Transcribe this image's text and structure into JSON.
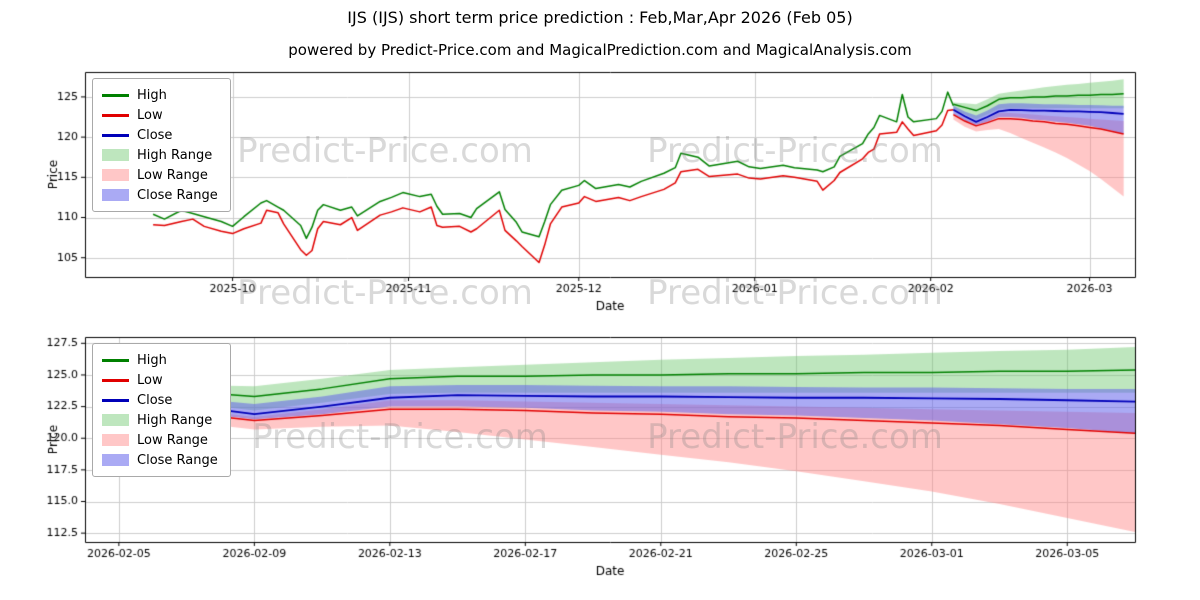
{
  "page": {
    "title": "IJS (IJS) short term price prediction : Feb,Mar,Apr 2026 (Feb 05)",
    "subtitle": "powered by Predict-Price.com and MagicalPrediction.com and MagicalAnalysis.com",
    "watermark": "Predict-Price.com"
  },
  "colors": {
    "high": "#008000",
    "low": "#e00000",
    "close": "#0000b8",
    "high_range_fill": "rgba(110,200,110,0.45)",
    "low_range_fill": "rgba(255,130,130,0.45)",
    "close_range_fill": "rgba(100,100,235,0.55)",
    "grid": "#cccccc",
    "frame": "#000000"
  },
  "legend": {
    "items": [
      {
        "label": "High",
        "kind": "line",
        "color_key": "high"
      },
      {
        "label": "Low",
        "kind": "line",
        "color_key": "low"
      },
      {
        "label": "Close",
        "kind": "line",
        "color_key": "close"
      },
      {
        "label": "High Range",
        "kind": "band",
        "color_key": "high_range_fill"
      },
      {
        "label": "Low Range",
        "kind": "band",
        "color_key": "low_range_fill"
      },
      {
        "label": "Close Range",
        "kind": "band",
        "color_key": "close_range_fill"
      }
    ]
  },
  "chart_data": [
    {
      "type": "line",
      "title": "IJS history and prediction overview",
      "xlabel": "Date",
      "ylabel": "Price",
      "xlim": [
        "2025-09-05",
        "2026-03-09"
      ],
      "ylim": [
        102.6,
        128.1
      ],
      "yticks": [
        {
          "v": 105,
          "label": "105"
        },
        {
          "v": 110,
          "label": "110"
        },
        {
          "v": 115,
          "label": "115"
        },
        {
          "v": 120,
          "label": "120"
        },
        {
          "v": 125,
          "label": "125"
        }
      ],
      "xticks": [
        {
          "date": "2025-10-01",
          "label": "2025-10"
        },
        {
          "date": "2025-11-01",
          "label": "2025-11"
        },
        {
          "date": "2025-12-01",
          "label": "2025-12"
        },
        {
          "date": "2026-01-01",
          "label": "2026-01"
        },
        {
          "date": "2026-02-01",
          "label": "2026-02"
        },
        {
          "date": "2026-03-01",
          "label": "2026-03"
        }
      ],
      "history": {
        "dates": [
          "2025-09-17",
          "2025-09-19",
          "2025-09-22",
          "2025-09-24",
          "2025-09-26",
          "2025-09-29",
          "2025-10-01",
          "2025-10-03",
          "2025-10-06",
          "2025-10-07",
          "2025-10-09",
          "2025-10-10",
          "2025-10-13",
          "2025-10-14",
          "2025-10-15",
          "2025-10-16",
          "2025-10-17",
          "2025-10-20",
          "2025-10-22",
          "2025-10-23",
          "2025-10-27",
          "2025-10-29",
          "2025-10-31",
          "2025-11-03",
          "2025-11-05",
          "2025-11-06",
          "2025-11-07",
          "2025-11-10",
          "2025-11-12",
          "2025-11-13",
          "2025-11-17",
          "2025-11-18",
          "2025-11-20",
          "2025-11-21",
          "2025-11-24",
          "2025-11-25",
          "2025-11-26",
          "2025-11-28",
          "2025-12-01",
          "2025-12-02",
          "2025-12-04",
          "2025-12-08",
          "2025-12-10",
          "2025-12-12",
          "2025-12-16",
          "2025-12-18",
          "2025-12-19",
          "2025-12-22",
          "2025-12-24",
          "2025-12-29",
          "2025-12-31",
          "2026-01-02",
          "2026-01-06",
          "2026-01-08",
          "2026-01-12",
          "2026-01-13",
          "2026-01-15",
          "2026-01-16",
          "2026-01-20",
          "2026-01-21",
          "2026-01-22",
          "2026-01-23",
          "2026-01-26",
          "2026-01-27",
          "2026-01-28",
          "2026-01-29",
          "2026-02-02",
          "2026-02-03",
          "2026-02-04",
          "2026-02-05"
        ],
        "high": [
          110.4,
          109.8,
          110.9,
          110.5,
          110.1,
          109.5,
          108.9,
          110.1,
          111.8,
          112.1,
          111.3,
          110.9,
          109.0,
          107.4,
          108.8,
          110.9,
          111.6,
          110.9,
          111.3,
          110.2,
          112.0,
          112.5,
          113.1,
          112.6,
          112.9,
          111.4,
          110.4,
          110.5,
          110.0,
          111.1,
          113.2,
          111.0,
          109.4,
          108.2,
          107.6,
          109.5,
          111.6,
          113.4,
          114.0,
          114.6,
          113.6,
          114.1,
          113.8,
          114.5,
          115.5,
          116.2,
          118.0,
          117.5,
          116.4,
          117.0,
          116.3,
          116.1,
          116.5,
          116.2,
          115.9,
          115.7,
          116.3,
          117.6,
          119.2,
          120.4,
          121.2,
          122.7,
          121.9,
          125.3,
          122.5,
          121.9,
          122.3,
          123.2,
          125.6,
          123.9
        ],
        "low": [
          109.1,
          109.0,
          109.5,
          109.8,
          108.9,
          108.3,
          108.0,
          108.6,
          109.3,
          110.9,
          110.6,
          109.2,
          106.0,
          105.3,
          105.9,
          108.6,
          109.5,
          109.1,
          110.0,
          108.4,
          110.3,
          110.7,
          111.2,
          110.7,
          111.3,
          109.0,
          108.8,
          108.9,
          108.2,
          108.6,
          110.9,
          108.4,
          107.1,
          106.4,
          104.4,
          106.6,
          109.2,
          111.3,
          111.8,
          112.6,
          112.0,
          112.5,
          112.1,
          112.6,
          113.5,
          114.3,
          115.7,
          116.0,
          115.1,
          115.4,
          114.9,
          114.8,
          115.2,
          115.0,
          114.5,
          113.4,
          114.6,
          115.6,
          117.3,
          118.1,
          118.5,
          120.4,
          120.6,
          121.9,
          121.0,
          120.2,
          120.8,
          121.5,
          123.3,
          123.4
        ]
      },
      "forecast": {
        "dates": [
          "2026-02-05",
          "2026-02-07",
          "2026-02-09",
          "2026-02-11",
          "2026-02-13",
          "2026-02-15",
          "2026-02-17",
          "2026-02-19",
          "2026-02-21",
          "2026-02-23",
          "2026-02-25",
          "2026-02-27",
          "2026-03-01",
          "2026-03-03",
          "2026-03-05",
          "2026-03-07"
        ],
        "high": [
          124.1,
          123.7,
          123.3,
          123.9,
          124.7,
          124.9,
          124.9,
          125.0,
          125.0,
          125.1,
          125.1,
          125.2,
          125.2,
          125.3,
          125.3,
          125.4
        ],
        "low": [
          122.8,
          122.0,
          121.4,
          121.8,
          122.3,
          122.3,
          122.2,
          122.0,
          121.9,
          121.7,
          121.6,
          121.4,
          121.2,
          121.0,
          120.7,
          120.4
        ],
        "close": [
          123.4,
          122.6,
          121.9,
          122.5,
          123.2,
          123.4,
          123.35,
          123.3,
          123.3,
          123.25,
          123.2,
          123.2,
          123.15,
          123.1,
          123.0,
          122.9
        ],
        "high_band": {
          "upper": [
            124.3,
            124.2,
            124.1,
            124.7,
            125.4,
            125.6,
            125.8,
            126.0,
            126.2,
            126.35,
            126.5,
            126.6,
            126.75,
            126.9,
            127.0,
            127.2
          ],
          "lower": [
            123.4,
            122.8,
            122.2,
            122.8,
            123.5,
            123.6,
            123.6,
            123.6,
            123.6,
            123.6,
            123.6,
            123.6,
            123.6,
            123.6,
            123.6,
            123.6
          ]
        },
        "low_band": {
          "upper": [
            123.0,
            122.3,
            121.7,
            122.3,
            123.0,
            123.0,
            122.9,
            122.8,
            122.7,
            122.6,
            122.5,
            122.4,
            122.3,
            122.2,
            122.1,
            122.0
          ],
          "lower": [
            122.2,
            121.3,
            120.7,
            120.9,
            121.0,
            120.5,
            119.9,
            119.3,
            118.7,
            118.1,
            117.4,
            116.6,
            115.8,
            114.8,
            113.7,
            112.6
          ]
        },
        "close_band": {
          "upper": [
            123.9,
            123.2,
            122.7,
            123.3,
            124.1,
            124.2,
            124.2,
            124.15,
            124.1,
            124.1,
            124.05,
            124.0,
            124.0,
            123.95,
            123.9,
            123.9
          ],
          "lower": [
            122.9,
            122.1,
            121.5,
            121.9,
            122.5,
            122.5,
            122.4,
            122.2,
            122.1,
            121.9,
            121.8,
            121.6,
            121.4,
            121.1,
            120.8,
            120.4
          ]
        }
      }
    },
    {
      "type": "line",
      "title": "IJS forecast zoom Feb-Mar 2026",
      "xlabel": "Date",
      "ylabel": "Price",
      "xlim": [
        "2026-02-04",
        "2026-03-07"
      ],
      "ylim": [
        111.8,
        128.0
      ],
      "yticks": [
        {
          "v": 112.5,
          "label": "112.5"
        },
        {
          "v": 115.0,
          "label": "115.0"
        },
        {
          "v": 117.5,
          "label": "117.5"
        },
        {
          "v": 120.0,
          "label": "120.0"
        },
        {
          "v": 122.5,
          "label": "122.5"
        },
        {
          "v": 125.0,
          "label": "125.0"
        },
        {
          "v": 127.5,
          "label": "127.5"
        }
      ],
      "xticks": [
        {
          "date": "2026-02-05",
          "label": "2026-02-05"
        },
        {
          "date": "2026-02-09",
          "label": "2026-02-09"
        },
        {
          "date": "2026-02-13",
          "label": "2026-02-13"
        },
        {
          "date": "2026-02-17",
          "label": "2026-02-17"
        },
        {
          "date": "2026-02-21",
          "label": "2026-02-21"
        },
        {
          "date": "2026-02-25",
          "label": "2026-02-25"
        },
        {
          "date": "2026-03-01",
          "label": "2026-03-01"
        },
        {
          "date": "2026-03-05",
          "label": "2026-03-05"
        }
      ],
      "forecast_ref": 0
    }
  ]
}
